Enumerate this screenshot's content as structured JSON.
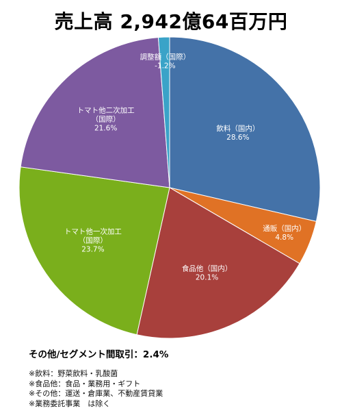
{
  "title": "売上高 2,942億64百万円",
  "chart_data": {
    "type": "pie",
    "title": "売上高 2,942億64百万円",
    "slices": [
      {
        "label": "飲料（国内）",
        "value": 28.6,
        "value_label": "28.6%",
        "color": "#4472a8"
      },
      {
        "label": "通販（国内）",
        "value": 4.8,
        "value_label": "4.8%",
        "color": "#e07225"
      },
      {
        "label": "食品他（国内）",
        "value": 20.1,
        "value_label": "20.1%",
        "color": "#a8403c"
      },
      {
        "label": "トマト他一次加工\n（国際）",
        "value": 23.7,
        "value_label": "23.7%",
        "color": "#7aaf1c"
      },
      {
        "label": "トマト他二次加工\n（国際）",
        "value": 21.6,
        "value_label": "21.6%",
        "color": "#7d5aa0"
      },
      {
        "label": "調整額（国際）",
        "value": 1.2,
        "value_label": "-1.2%",
        "color": "#3aa3c8"
      }
    ]
  },
  "other_note": "その他/セグメント間取引：2.4%",
  "footnotes": [
    "※飲料：野菜飲料・乳酸菌",
    "※食品他：食品・業務用・ギフト",
    "※その他：運送・倉庫業、不動産賃貸業",
    "※業務委託事業　は除く"
  ]
}
